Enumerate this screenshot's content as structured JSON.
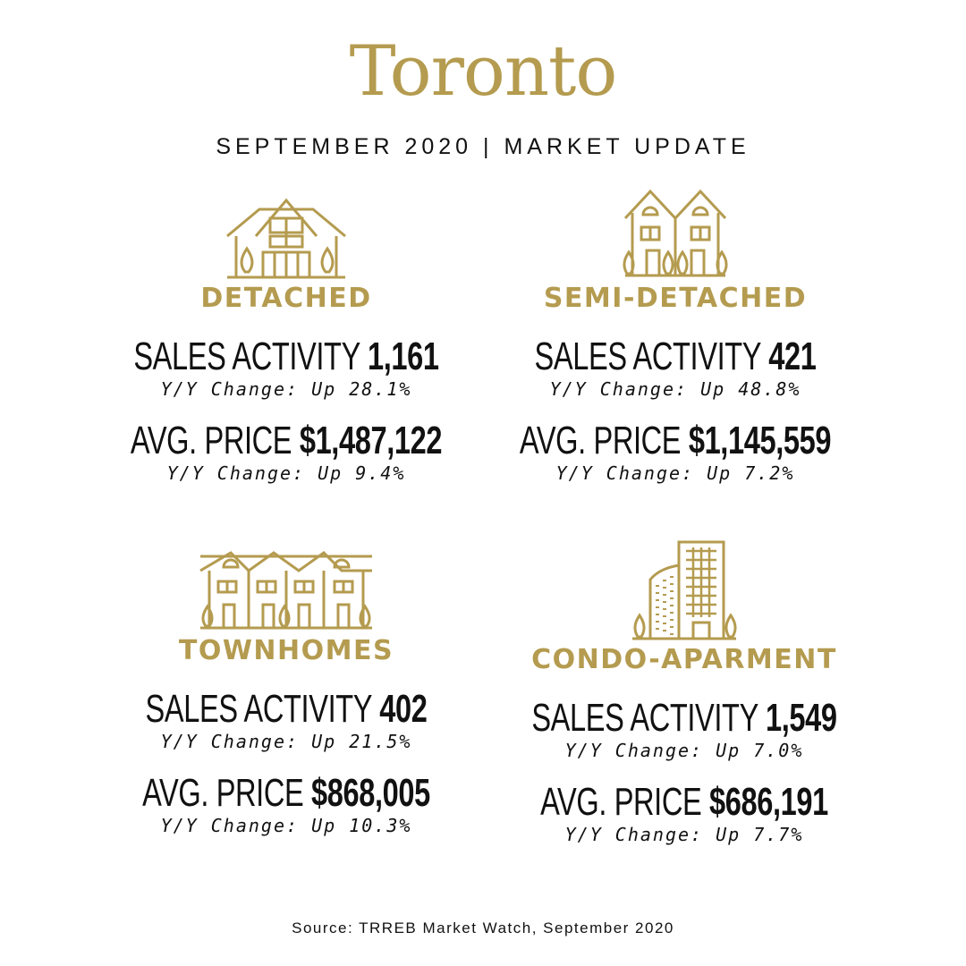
{
  "header": {
    "title": "Toronto",
    "subtitle": "SEPTEMBER 2020  |  MARKET UPDATE"
  },
  "colors": {
    "accent": "#b49b4f",
    "text": "#111111",
    "background": "#ffffff"
  },
  "cards": [
    {
      "type": "DETACHED",
      "icon": "detached-house-icon",
      "sales_label": "SALES ACTIVITY",
      "sales_value": "1,161",
      "sales_change": "Y/Y Change: Up 28.1%",
      "price_label": "AVG. PRICE",
      "price_value": "$1,487,122",
      "price_change": "Y/Y Change: Up 9.4%"
    },
    {
      "type": "SEMI-DETACHED",
      "icon": "semi-detached-house-icon",
      "sales_label": "SALES ACTIVITY",
      "sales_value": "421",
      "sales_change": "Y/Y Change: Up 48.8%",
      "price_label": "AVG. PRICE",
      "price_value": "$1,145,559",
      "price_change": "Y/Y Change: Up 7.2%"
    },
    {
      "type": "TOWNHOMES",
      "icon": "townhomes-icon",
      "sales_label": "SALES ACTIVITY",
      "sales_value": "402",
      "sales_change": "Y/Y Change: Up 21.5%",
      "price_label": "AVG. PRICE",
      "price_value": "$868,005",
      "price_change": "Y/Y Change: Up 10.3%"
    },
    {
      "type": "CONDO-APARMENT",
      "icon": "condo-building-icon",
      "sales_label": "SALES ACTIVITY",
      "sales_value": "1,549",
      "sales_change": "Y/Y Change: Up 7.0%",
      "price_label": "AVG. PRICE",
      "price_value": "$686,191",
      "price_change": "Y/Y Change: Up 7.7%"
    }
  ],
  "footer": {
    "source": "Source: TRREB Market Watch, September 2020"
  }
}
